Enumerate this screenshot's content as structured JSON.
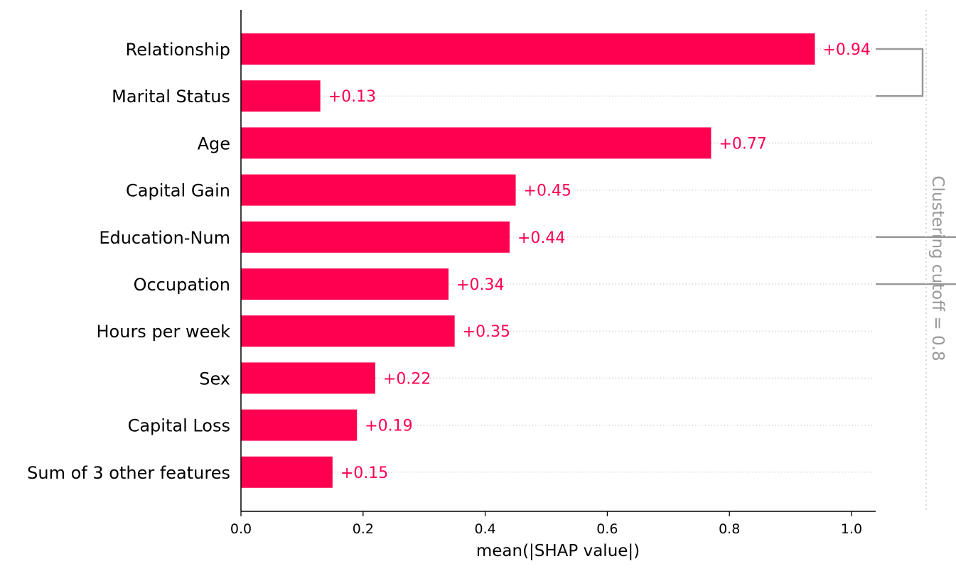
{
  "chart_data": {
    "type": "bar",
    "orientation": "horizontal",
    "categories": [
      "Relationship",
      "Marital Status",
      "Age",
      "Capital Gain",
      "Education-Num",
      "Occupation",
      "Hours per week",
      "Sex",
      "Capital Loss",
      "Sum of 3 other features"
    ],
    "values": [
      0.94,
      0.13,
      0.77,
      0.45,
      0.44,
      0.34,
      0.35,
      0.22,
      0.19,
      0.15
    ],
    "value_labels": [
      "+0.94",
      "+0.13",
      "+0.77",
      "+0.45",
      "+0.44",
      "+0.34",
      "+0.35",
      "+0.22",
      "+0.19",
      "+0.15"
    ],
    "xlabel": "mean(|SHAP value|)",
    "xticks": [
      "0.0",
      "0.2",
      "0.4",
      "0.6",
      "0.8",
      "1.0"
    ],
    "xlim": [
      0,
      1.04
    ],
    "clustering_label": "Clustering cutoff = 0.8",
    "clusters": [
      {
        "rows": [
          0,
          1
        ],
        "level": 0.2
      },
      {
        "rows": [
          4,
          5
        ],
        "level": 0.4
      }
    ],
    "grid": "dotted row guides",
    "legend": "none",
    "colors": {
      "bar": "#ff0051",
      "value_text": "#ff0051",
      "cluster": "#999999",
      "guide": "#cccccc"
    }
  }
}
